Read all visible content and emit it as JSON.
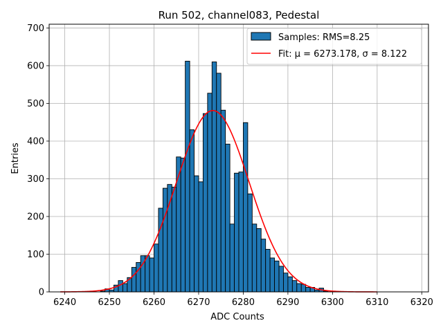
{
  "chart_data": {
    "type": "bar",
    "title": "Run 502, channel083, Pedestal",
    "xlabel": "ADC Counts",
    "ylabel": "Entries",
    "xlim": [
      6236.5,
      6321.5
    ],
    "ylim": [
      0,
      710
    ],
    "xticks": [
      6240,
      6250,
      6260,
      6270,
      6280,
      6290,
      6300,
      6310,
      6320
    ],
    "yticks": [
      0,
      100,
      200,
      300,
      400,
      500,
      600,
      700
    ],
    "grid": true,
    "legend_position": "top-right",
    "colors": {
      "bars": "#1f77b4",
      "bar_edge": "#000000",
      "fit": "#ff0000",
      "grid": "#b0b0b0"
    },
    "histogram": {
      "name": "Samples: RMS=8.25",
      "bin_width": 1,
      "bin_start": 6248,
      "counts": [
        2,
        8,
        5,
        18,
        30,
        22,
        38,
        65,
        78,
        96,
        96,
        90,
        127,
        222,
        275,
        285,
        278,
        358,
        355,
        612,
        430,
        308,
        292,
        473,
        527,
        610,
        580,
        482,
        392,
        180,
        315,
        318,
        449,
        260,
        180,
        168,
        140,
        113,
        90,
        82,
        68,
        50,
        40,
        30,
        22,
        20,
        12,
        12,
        5,
        10,
        2
      ]
    },
    "fit": {
      "name": "Fit: μ = 6273.178, σ = 8.122",
      "mu": 6273.178,
      "sigma": 8.122,
      "amplitude": 481,
      "x_range": [
        6239,
        6310
      ]
    }
  }
}
